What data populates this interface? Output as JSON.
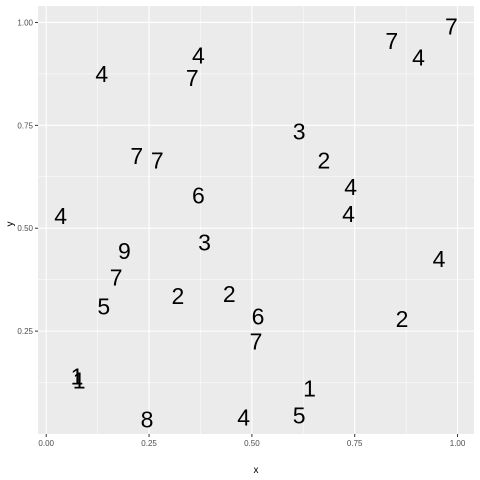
{
  "chart_data": {
    "type": "scatter",
    "xlabel": "x",
    "ylabel": "y",
    "xlim": [
      -0.02,
      1.04
    ],
    "ylim": [
      0.0,
      1.04
    ],
    "x_ticks": [
      0.0,
      0.25,
      0.5,
      0.75,
      1.0
    ],
    "x_tick_labels": [
      "0.00",
      "0.25",
      "0.50",
      "0.75",
      "1.00"
    ],
    "y_ticks": [
      0.25,
      0.5,
      0.75,
      1.0
    ],
    "y_tick_labels": [
      "0.25",
      "0.50",
      "0.75",
      "1.00"
    ],
    "grid": true,
    "colors": {
      "panel_background": "#ebebeb",
      "grid_major": "#ffffff",
      "text": "#000000",
      "tick_text": "#4d4d4d",
      "tick_mark": "#333333"
    },
    "points": [
      {
        "x": 0.985,
        "y": 0.99,
        "label": "7"
      },
      {
        "x": 0.84,
        "y": 0.955,
        "label": "7"
      },
      {
        "x": 0.905,
        "y": 0.915,
        "label": "4"
      },
      {
        "x": 0.37,
        "y": 0.92,
        "label": "4"
      },
      {
        "x": 0.355,
        "y": 0.865,
        "label": "7"
      },
      {
        "x": 0.135,
        "y": 0.875,
        "label": "4"
      },
      {
        "x": 0.615,
        "y": 0.735,
        "label": "3"
      },
      {
        "x": 0.675,
        "y": 0.665,
        "label": "2"
      },
      {
        "x": 0.74,
        "y": 0.6,
        "label": "4"
      },
      {
        "x": 0.735,
        "y": 0.535,
        "label": "4"
      },
      {
        "x": 0.22,
        "y": 0.675,
        "label": "7"
      },
      {
        "x": 0.27,
        "y": 0.665,
        "label": "7"
      },
      {
        "x": 0.37,
        "y": 0.58,
        "label": "6"
      },
      {
        "x": 0.035,
        "y": 0.53,
        "label": "4"
      },
      {
        "x": 0.385,
        "y": 0.465,
        "label": "3"
      },
      {
        "x": 0.19,
        "y": 0.445,
        "label": "9"
      },
      {
        "x": 0.17,
        "y": 0.38,
        "label": "7"
      },
      {
        "x": 0.955,
        "y": 0.425,
        "label": "4"
      },
      {
        "x": 0.14,
        "y": 0.31,
        "label": "5"
      },
      {
        "x": 0.32,
        "y": 0.335,
        "label": "2"
      },
      {
        "x": 0.445,
        "y": 0.34,
        "label": "2"
      },
      {
        "x": 0.515,
        "y": 0.285,
        "label": "6"
      },
      {
        "x": 0.865,
        "y": 0.28,
        "label": "2"
      },
      {
        "x": 0.51,
        "y": 0.225,
        "label": "7"
      },
      {
        "x": 0.075,
        "y": 0.14,
        "label": "1"
      },
      {
        "x": 0.08,
        "y": 0.13,
        "label": "1"
      },
      {
        "x": 0.64,
        "y": 0.11,
        "label": "1"
      },
      {
        "x": 0.245,
        "y": 0.035,
        "label": "8"
      },
      {
        "x": 0.48,
        "y": 0.04,
        "label": "4"
      },
      {
        "x": 0.615,
        "y": 0.045,
        "label": "5"
      }
    ]
  }
}
